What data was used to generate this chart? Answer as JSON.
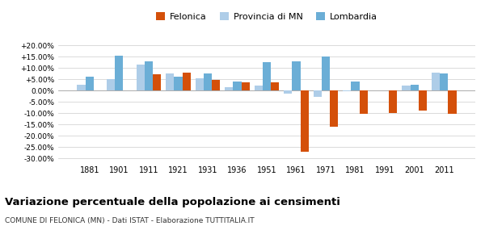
{
  "years": [
    1881,
    1901,
    1911,
    1921,
    1931,
    1936,
    1951,
    1961,
    1971,
    1981,
    1991,
    2001,
    2011
  ],
  "felonica": [
    0,
    -1.0,
    7.2,
    8.0,
    4.5,
    3.5,
    3.5,
    -27.0,
    -16.0,
    -10.5,
    -10.0,
    -9.0,
    -10.5
  ],
  "felonica_skip": [
    1
  ],
  "provincia_mn": [
    2.5,
    5.0,
    11.5,
    7.5,
    5.5,
    1.5,
    2.0,
    -1.5,
    -3.0,
    -0.5,
    0.0,
    2.0,
    8.0
  ],
  "lombardia": [
    6.0,
    15.5,
    13.0,
    6.0,
    7.5,
    4.0,
    12.5,
    13.0,
    15.0,
    4.0,
    0.0,
    2.5,
    7.5
  ],
  "color_felonica": "#d4500a",
  "color_provincia": "#aecde8",
  "color_lombardia": "#6baed6",
  "title": "Variazione percentuale della popolazione ai censimenti",
  "subtitle": "COMUNE DI FELONICA (MN) - Dati ISTAT - Elaborazione TUTTITALIA.IT",
  "ylim": [
    -32,
    22
  ],
  "yticks": [
    -30,
    -25,
    -20,
    -15,
    -10,
    -5,
    0,
    5,
    10,
    15,
    20
  ],
  "bar_width": 0.28,
  "legend_labels": [
    "Felonica",
    "Provincia di MN",
    "Lombardia"
  ]
}
